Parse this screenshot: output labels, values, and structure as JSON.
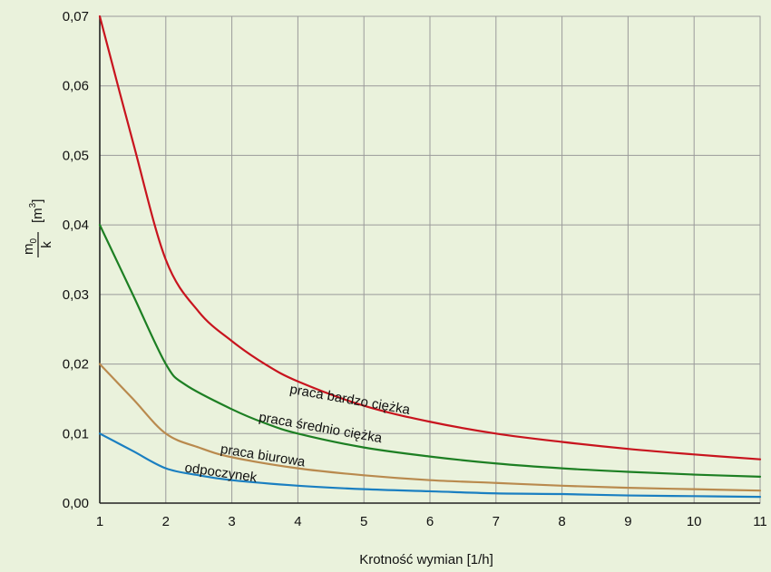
{
  "chart_data": {
    "type": "line",
    "xlabel": "Krotność wymian [1/h]",
    "ylabel": {
      "numerator": "m",
      "subscript": "0",
      "denominator": "k",
      "unit": "[m",
      "unit_sup": "3",
      "unit_close": "]"
    },
    "xlim": [
      1,
      11
    ],
    "ylim": [
      0,
      0.07
    ],
    "x_ticks": [
      1,
      2,
      3,
      4,
      5,
      6,
      7,
      8,
      9,
      10,
      11
    ],
    "x_tick_labels": [
      "1",
      "2",
      "3",
      "4",
      "5",
      "6",
      "7",
      "8",
      "9",
      "10",
      "11"
    ],
    "y_ticks": [
      0,
      0.01,
      0.02,
      0.03,
      0.04,
      0.05,
      0.06,
      0.07
    ],
    "y_tick_labels": [
      "0,00",
      "0,01",
      "0,02",
      "0,03",
      "0,04",
      "0,05",
      "0,06",
      "0,07"
    ],
    "grid": true,
    "colors": {
      "background": "#eaf2dc",
      "grid": "#9a9a9a"
    },
    "series": [
      {
        "name": "praca bardzo ciężka",
        "color": "#c8141e",
        "x": [
          1,
          1.5,
          2,
          2.5,
          3,
          3.5,
          4,
          5,
          6,
          7,
          8,
          9,
          10,
          11
        ],
        "y": [
          0.07,
          0.052,
          0.035,
          0.0275,
          0.0233,
          0.02,
          0.0175,
          0.014,
          0.0117,
          0.01,
          0.0088,
          0.0078,
          0.007,
          0.0063
        ]
      },
      {
        "name": "praca średnio ciężka",
        "color": "#1d7f23",
        "x": [
          1,
          1.5,
          2,
          2.3,
          3,
          3.5,
          4,
          5,
          6,
          7,
          8,
          9,
          10,
          11
        ],
        "y": [
          0.04,
          0.03,
          0.02,
          0.017,
          0.0135,
          0.0115,
          0.01,
          0.008,
          0.0067,
          0.0057,
          0.005,
          0.0045,
          0.0041,
          0.0038
        ]
      },
      {
        "name": "praca biurowa",
        "color": "#b98a4e",
        "x": [
          1,
          1.5,
          2,
          2.5,
          3,
          4,
          5,
          6,
          7,
          8,
          9,
          10,
          11
        ],
        "y": [
          0.02,
          0.015,
          0.01,
          0.008,
          0.0066,
          0.005,
          0.004,
          0.0033,
          0.0029,
          0.0025,
          0.0022,
          0.002,
          0.0018
        ]
      },
      {
        "name": "odpoczynek",
        "color": "#1a7fc1",
        "x": [
          1,
          1.5,
          2,
          2.5,
          3,
          4,
          5,
          6,
          7,
          8,
          9,
          10,
          11
        ],
        "y": [
          0.01,
          0.0075,
          0.005,
          0.004,
          0.0033,
          0.0025,
          0.002,
          0.0017,
          0.0014,
          0.0013,
          0.0011,
          0.001,
          0.0009
        ]
      }
    ]
  }
}
